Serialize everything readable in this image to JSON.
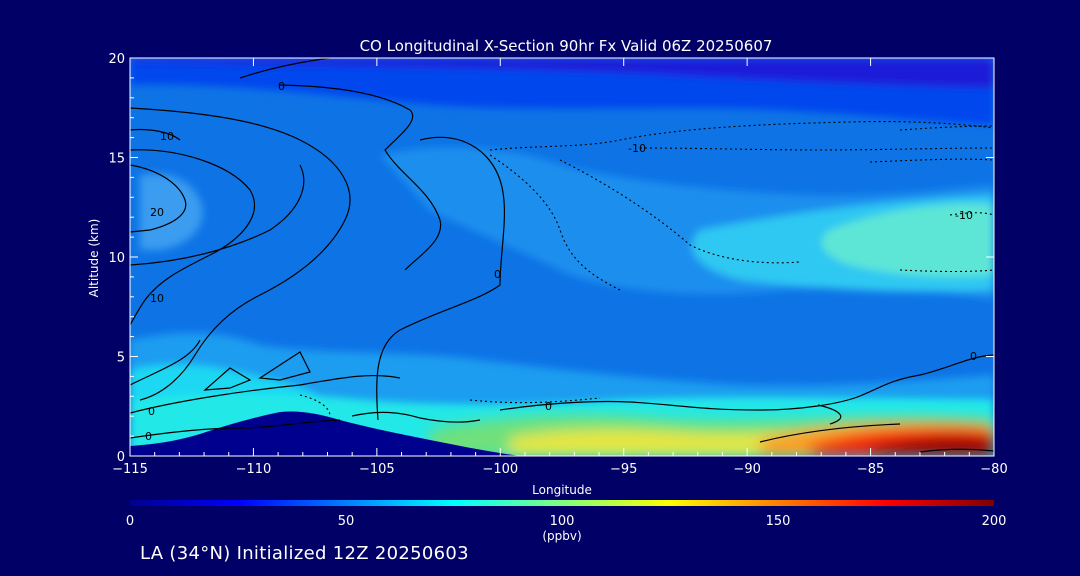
{
  "chart_data": {
    "type": "heatmap",
    "title": "CO Longitudinal X-Section 90hr  Fx Valid 06Z 20250607",
    "xlabel": "Longitude",
    "ylabel": "Altitude (km)",
    "xlim": [
      -115,
      -80
    ],
    "ylim": [
      0,
      20
    ],
    "x_ticks": [
      "-115",
      "-110",
      "-105",
      "-100",
      "-95",
      "-90",
      "-85",
      "-80"
    ],
    "y_ticks": [
      "0",
      "5",
      "10",
      "15",
      "20"
    ],
    "colorbar": {
      "range": [
        0,
        200
      ],
      "ticks": [
        "0",
        "50",
        "100",
        "150",
        "200"
      ],
      "label": "(ppbv)"
    },
    "contour_labels": [
      "10",
      "20",
      "10",
      "0",
      "0",
      "0",
      "-10",
      "-10",
      "0",
      "0",
      "0"
    ],
    "color_bands": [
      {
        "name": "stratosphere-low-co",
        "value_range": [
          15,
          35
        ],
        "altitude_km": [
          17,
          20
        ]
      },
      {
        "name": "upper-troposphere",
        "value_range": [
          40,
          60
        ],
        "altitude_km": [
          3,
          17
        ]
      },
      {
        "name": "east-upper-plume",
        "value_range": [
          60,
          85
        ],
        "longitude": [
          -90,
          -80
        ],
        "altitude_km": [
          8,
          13
        ]
      },
      {
        "name": "boundary-layer",
        "value_range": [
          70,
          140
        ],
        "altitude_km": [
          0,
          3
        ]
      },
      {
        "name": "surface-max-plume",
        "value_range": [
          150,
          200
        ],
        "longitude": [
          -88,
          -80
        ],
        "altitude_km": [
          0,
          1.5
        ]
      }
    ],
    "terrain": {
      "longitude": [
        -115,
        -113,
        -111,
        -109,
        -107,
        -105,
        -103,
        -100,
        -97
      ],
      "altitude_km": [
        0.3,
        0.6,
        1.5,
        2.2,
        2.1,
        1.6,
        1.0,
        0.5,
        0.2
      ]
    }
  },
  "footer_text": "LA (34°N) Initialized 12Z 20250603"
}
